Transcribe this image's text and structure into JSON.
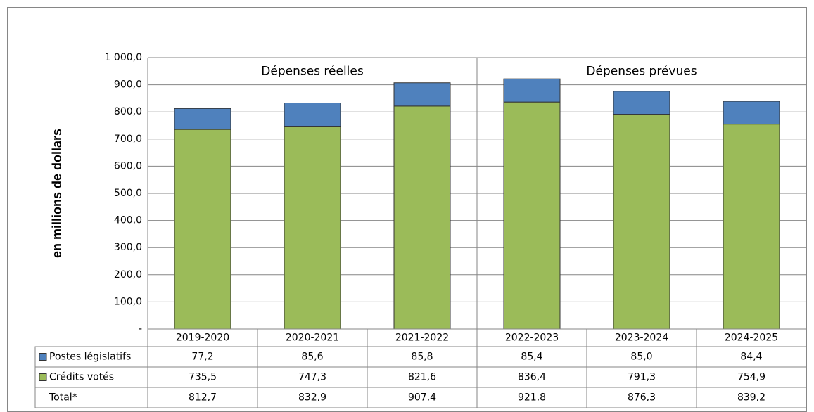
{
  "chart_data": {
    "type": "bar",
    "stacked": true,
    "ylabel": "en millions de dollars",
    "annotations": [
      "Dépenses réelles",
      "Dépenses prévues"
    ],
    "categories": [
      "2019-2020",
      "2020-2021",
      "2021-2022",
      "2022-2023",
      "2023-2024",
      "2024-2025"
    ],
    "series": [
      {
        "name": "Postes législatifs",
        "color": "#4f81bd",
        "values": [
          77.2,
          85.6,
          85.8,
          85.4,
          85.0,
          84.4
        ],
        "value_labels": [
          "77,2",
          "85,6",
          "85,8",
          "85,4",
          "85,0",
          "84,4"
        ]
      },
      {
        "name": "Crédits votés",
        "color": "#9bbb59",
        "values": [
          735.5,
          747.3,
          821.6,
          836.4,
          791.3,
          754.9
        ],
        "value_labels": [
          "735,5",
          "747,3",
          "821,6",
          "836,4",
          "791,3",
          "754,9"
        ]
      }
    ],
    "total": {
      "name": "Total*",
      "values": [
        812.7,
        832.9,
        907.4,
        921.8,
        876.3,
        839.2
      ],
      "value_labels": [
        "812,7",
        "832,9",
        "907,4",
        "921,8",
        "876,3",
        "839,2"
      ]
    },
    "ylim": [
      0,
      1000
    ],
    "yticks": [
      {
        "value": 0,
        "label": "-"
      },
      {
        "value": 100,
        "label": "100,0"
      },
      {
        "value": 200,
        "label": "200,0"
      },
      {
        "value": 300,
        "label": "300,0"
      },
      {
        "value": 400,
        "label": "400,0"
      },
      {
        "value": 500,
        "label": "500,0"
      },
      {
        "value": 600,
        "label": "600,0"
      },
      {
        "value": 700,
        "label": "700,0"
      },
      {
        "value": 800,
        "label": "800,0"
      },
      {
        "value": 900,
        "label": "900,0"
      },
      {
        "value": 1000,
        "label": "1 000,0"
      }
    ],
    "grid": true
  }
}
